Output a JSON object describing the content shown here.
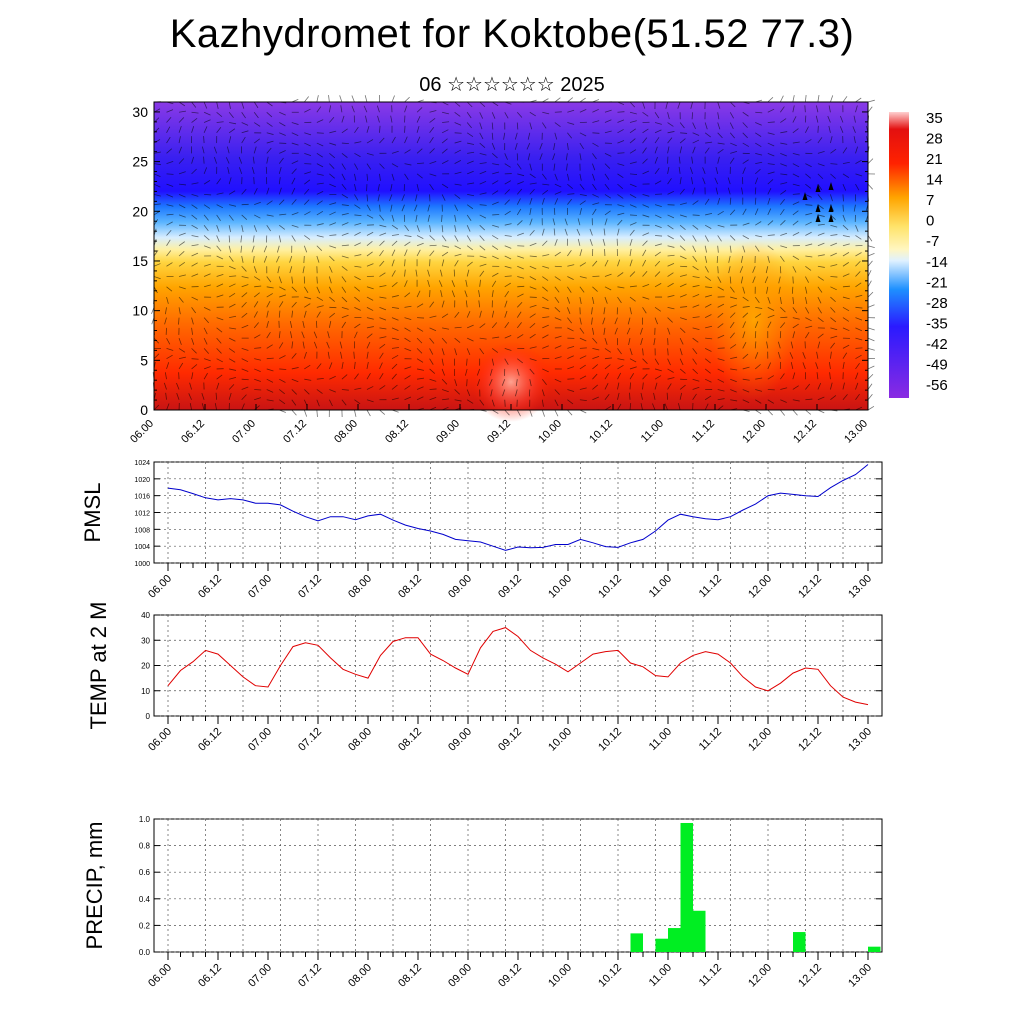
{
  "title": "Kazhydromet for Koktobe(51.52 77.3)",
  "subtitle": "06 ☆☆☆☆☆☆ 2025",
  "chart_data": [
    {
      "name": "temperature-cross-section",
      "type": "heatmap",
      "y_ticks": [
        "0",
        "5",
        "10",
        "15",
        "20",
        "25",
        "30"
      ],
      "ylim": [
        0,
        31
      ],
      "x_ticks": [
        "06.00",
        "06.12",
        "07.00",
        "07.12",
        "08.00",
        "08.12",
        "09.00",
        "09.12",
        "10.00",
        "10.12",
        "11.00",
        "11.12",
        "12.00",
        "12.12",
        "13.00"
      ],
      "colorbar_labels": [
        "35",
        "28",
        "21",
        "14",
        "7",
        "0",
        "-7",
        "-14",
        "-21",
        "-28",
        "-35",
        "-42",
        "-49",
        "-56"
      ],
      "colors": [
        "#8a2be2",
        "#2a1aff",
        "#1e90ff",
        "#dff1ff",
        "#ffe36a",
        "#ffa500",
        "#ff2200",
        "#e31010",
        "#ffd0d0"
      ]
    },
    {
      "name": "pmsl",
      "type": "line",
      "ylabel": "PMSL",
      "ylim": [
        1000,
        1024
      ],
      "y_ticks": [
        "1000",
        "1004",
        "1008",
        "1012",
        "1016",
        "1020",
        "1024"
      ],
      "x_ticks": [
        "06.00",
        "06.12",
        "07.00",
        "07.12",
        "08.00",
        "08.12",
        "09.00",
        "09.12",
        "10.00",
        "10.12",
        "11.00",
        "11.12",
        "12.00",
        "12.12",
        "13.00"
      ],
      "color": "#0000cc",
      "values": [
        1017.8,
        1017.4,
        1016.5,
        1015.5,
        1015.0,
        1015.3,
        1015.0,
        1014.2,
        1014.2,
        1013.8,
        1012.3,
        1011.0,
        1010.0,
        1011.0,
        1011.0,
        1010.3,
        1011.2,
        1011.6,
        1010.2,
        1009.0,
        1008.2,
        1007.6,
        1006.8,
        1005.6,
        1005.3,
        1005.0,
        1004.0,
        1003.0,
        1003.8,
        1003.6,
        1003.7,
        1004.4,
        1004.4,
        1005.6,
        1004.8,
        1003.9,
        1003.7,
        1004.8,
        1005.6,
        1007.6,
        1010.2,
        1011.6,
        1011.0,
        1010.5,
        1010.3,
        1011.0,
        1012.6,
        1014.0,
        1016.0,
        1016.6,
        1016.3,
        1016.0,
        1015.8,
        1017.9,
        1019.6,
        1021.0,
        1023.4
      ]
    },
    {
      "name": "temp-2m",
      "type": "line",
      "ylabel": "TEMP at 2 M",
      "ylim": [
        0,
        40
      ],
      "y_ticks": [
        "0",
        "10",
        "20",
        "30",
        "40"
      ],
      "x_ticks": [
        "06.00",
        "06.12",
        "07.00",
        "07.12",
        "08.00",
        "08.12",
        "09.00",
        "09.12",
        "10.00",
        "10.12",
        "11.00",
        "11.12",
        "12.00",
        "12.12",
        "13.00"
      ],
      "color": "#e00000",
      "values": [
        12,
        18,
        21.5,
        26,
        24.5,
        20,
        15.5,
        12,
        11.5,
        20,
        27.5,
        29,
        28,
        23,
        18.5,
        16.5,
        15,
        24,
        29.5,
        31,
        31,
        24.5,
        22,
        19,
        16.5,
        27,
        33.5,
        35,
        31.5,
        26,
        23,
        20.5,
        17.5,
        21,
        24.5,
        25.5,
        26,
        21,
        19.5,
        16,
        15.5,
        21,
        24,
        25.5,
        24.5,
        21,
        15.5,
        11.5,
        10,
        13,
        17,
        19,
        18.5,
        12,
        7.5,
        5.5,
        4.5
      ]
    },
    {
      "name": "precip",
      "type": "bar",
      "ylabel": "PRECIP, mm",
      "ylim": [
        0,
        1.0
      ],
      "y_ticks": [
        "0.0",
        "0.2",
        "0.4",
        "0.6",
        "0.8",
        "1.0"
      ],
      "x_ticks": [
        "06.00",
        "06.12",
        "07.00",
        "07.12",
        "08.00",
        "08.12",
        "09.00",
        "09.12",
        "10.00",
        "10.12",
        "11.00",
        "11.12",
        "12.00",
        "12.12",
        "13.00"
      ],
      "color": "#00ee22",
      "bars": [
        {
          "x": 37.5,
          "value": 0.14
        },
        {
          "x": 39.5,
          "value": 0.1
        },
        {
          "x": 40.5,
          "value": 0.18
        },
        {
          "x": 41.5,
          "value": 0.97
        },
        {
          "x": 42.5,
          "value": 0.31
        },
        {
          "x": 50.5,
          "value": 0.15
        },
        {
          "x": 56.5,
          "value": 0.04
        }
      ]
    }
  ]
}
